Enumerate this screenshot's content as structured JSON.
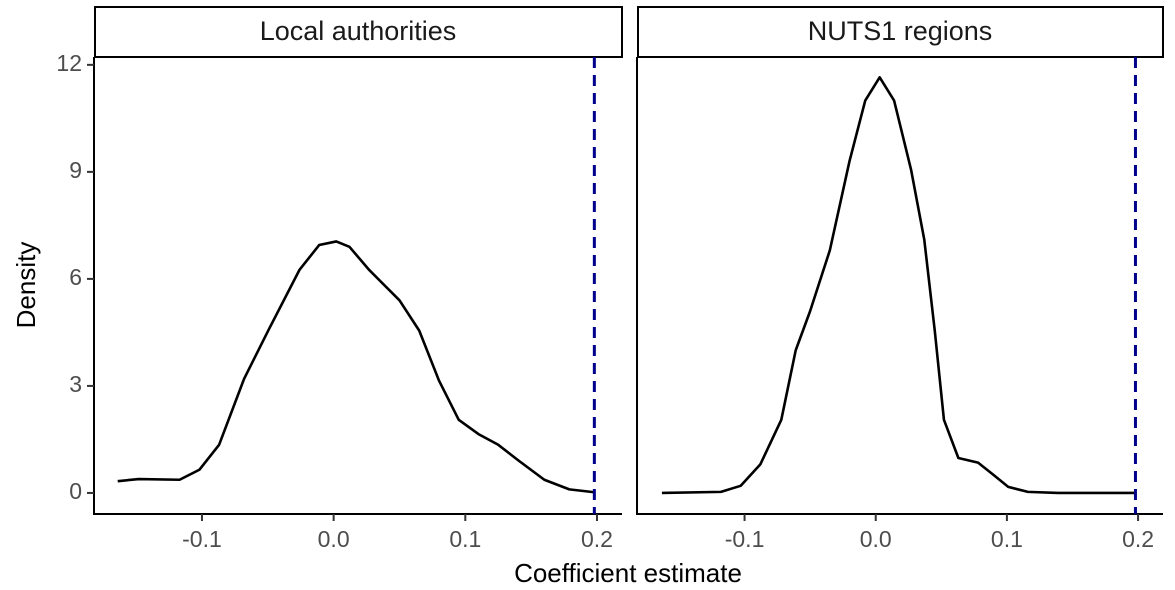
{
  "chart_data": [
    {
      "type": "line",
      "title": "Local authorities",
      "xlabel": "Coefficient estimate",
      "ylabel": "Density",
      "x": [
        -0.164,
        -0.148,
        -0.117,
        -0.102,
        -0.087,
        -0.068,
        -0.049,
        -0.026,
        -0.011,
        0.002,
        0.012,
        0.027,
        0.05,
        0.065,
        0.08,
        0.095,
        0.11,
        0.125,
        0.14,
        0.16,
        0.179,
        0.198
      ],
      "values": [
        0.33,
        0.39,
        0.37,
        0.65,
        1.35,
        3.2,
        4.6,
        6.25,
        6.95,
        7.05,
        6.9,
        6.25,
        5.4,
        4.55,
        3.15,
        2.05,
        1.65,
        1.35,
        0.92,
        0.37,
        0.1,
        0.02
      ],
      "color": "#000000",
      "vline": 0.198,
      "vline_color": "#00008b",
      "xlim": [
        -0.182,
        0.219
      ],
      "ylim": [
        -0.59,
        12.22
      ],
      "xticks": [
        -0.1,
        {
          "value": 0,
          "label": "0.0"
        },
        0.1,
        0.2
      ],
      "yticks": [
        0,
        3,
        6,
        9,
        12
      ]
    },
    {
      "type": "line",
      "title": "NUTS1 regions",
      "x": [
        -0.163,
        -0.118,
        -0.103,
        -0.088,
        -0.072,
        -0.061,
        -0.05,
        -0.035,
        -0.02,
        -0.008,
        0.003,
        0.014,
        0.027,
        0.037,
        0.045,
        0.052,
        0.063,
        0.078,
        0.09,
        0.101,
        0.116,
        0.139,
        0.198
      ],
      "values": [
        0,
        0.03,
        0.2,
        0.8,
        2.05,
        4.0,
        5.1,
        6.8,
        9.3,
        11.0,
        11.65,
        11.0,
        9.05,
        7.1,
        4.55,
        2.05,
        0.98,
        0.85,
        0.5,
        0.17,
        0.03,
        0,
        0
      ],
      "color": "#000000",
      "vline": 0.198,
      "vline_color": "#00008b",
      "xlim": [
        -0.182,
        0.219
      ],
      "ylim": [
        -0.59,
        12.22
      ],
      "xticks": [
        -0.1,
        {
          "value": 0,
          "label": "0.0"
        },
        0.1,
        0.2
      ]
    }
  ]
}
